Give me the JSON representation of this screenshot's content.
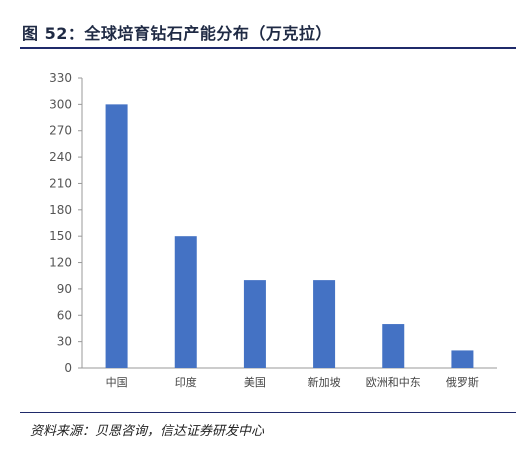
{
  "title": "图 52：全球培育钻石产能分布（万克拉）",
  "source": "资料来源：贝恩咨询，信达证券研发中心",
  "chart_data": {
    "type": "bar",
    "title": "图 52：全球培育钻石产能分布（万克拉）",
    "categories": [
      "中国",
      "印度",
      "美国",
      "新加坡",
      "欧洲和中东",
      "俄罗斯"
    ],
    "values": [
      300,
      150,
      100,
      100,
      50,
      20
    ],
    "ylim": [
      0,
      330
    ],
    "yticks": [
      0,
      30,
      60,
      90,
      120,
      150,
      180,
      210,
      240,
      270,
      300,
      330
    ],
    "grid": false,
    "bar_color": "#4472C4"
  }
}
